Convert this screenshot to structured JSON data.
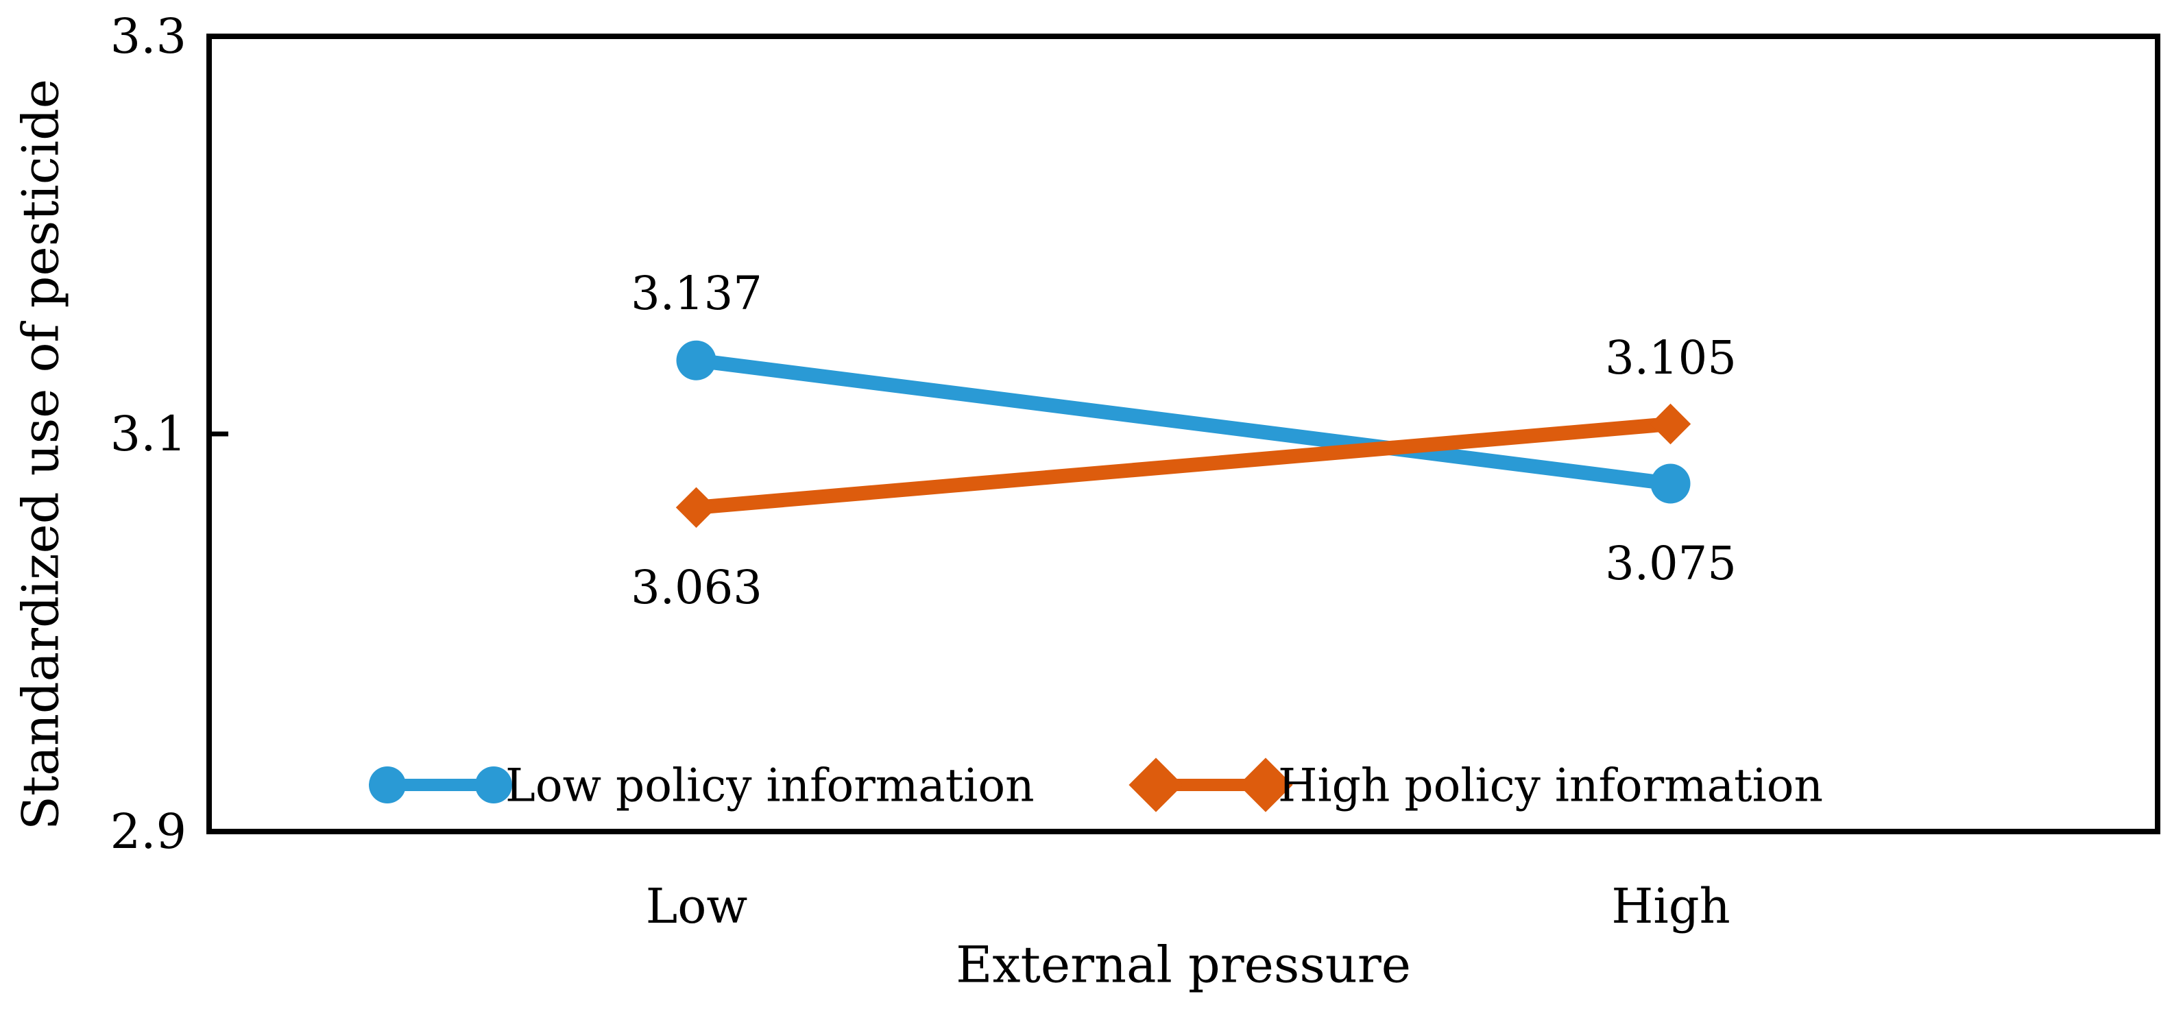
{
  "chart_data": {
    "type": "line",
    "title": "",
    "xlabel": "External pressure",
    "ylabel": "Standardized use of pesticide",
    "categories": [
      "Low",
      "High"
    ],
    "series": [
      {
        "name": "Low policy information",
        "marker": "circle",
        "color": "#2A9AD5",
        "values": [
          3.137,
          3.075
        ],
        "data_labels": [
          "3.137",
          "3.075"
        ],
        "label_side": [
          "above",
          "below"
        ]
      },
      {
        "name": "High policy information",
        "marker": "diamond",
        "color": "#DD5C0D",
        "values": [
          3.063,
          3.105
        ],
        "data_labels": [
          "3.063",
          "3.105"
        ],
        "label_side": [
          "below",
          "above"
        ]
      }
    ],
    "ylim": [
      2.9,
      3.3
    ],
    "yticks": [
      3.3,
      3.1,
      2.9
    ],
    "ytick_labels": [
      "3.3",
      "3.1",
      "2.9"
    ],
    "grid": false,
    "legend_position": "bottom-inside"
  }
}
